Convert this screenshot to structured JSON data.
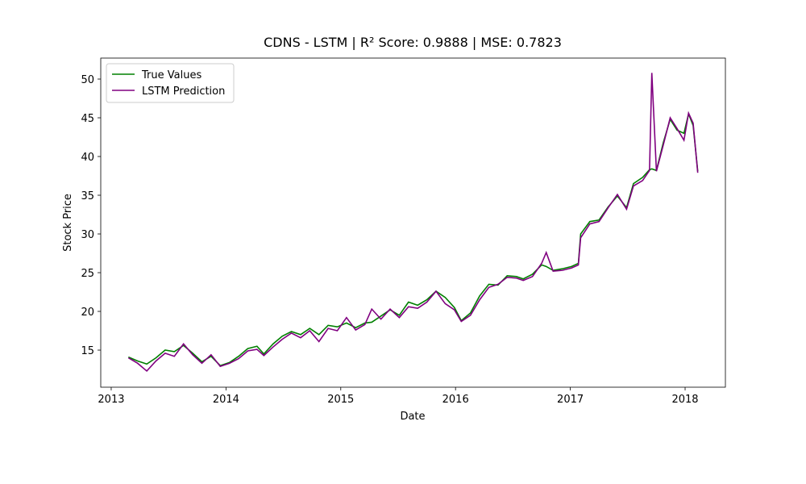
{
  "chart_data": {
    "type": "line",
    "title": "CDNS - LSTM | R² Score: 0.9888 | MSE: 0.7823",
    "x_label": "Date",
    "y_label": "Stock Price",
    "x": [
      2013.15,
      2013.23,
      2013.31,
      2013.39,
      2013.47,
      2013.55,
      2013.63,
      2013.71,
      2013.79,
      2013.87,
      2013.95,
      2014.03,
      2014.11,
      2014.19,
      2014.27,
      2014.33,
      2014.41,
      2014.49,
      2014.57,
      2014.65,
      2014.73,
      2014.81,
      2014.89,
      2014.97,
      2015.05,
      2015.13,
      2015.21,
      2015.27,
      2015.35,
      2015.43,
      2015.51,
      2015.59,
      2015.67,
      2015.75,
      2015.83,
      2015.91,
      2015.99,
      2016.05,
      2016.13,
      2016.21,
      2016.29,
      2016.37,
      2016.45,
      2016.53,
      2016.59,
      2016.67,
      2016.75,
      2016.79,
      2016.85,
      2016.93,
      2017.01,
      2017.07,
      2017.09,
      2017.17,
      2017.25,
      2017.33,
      2017.41,
      2017.49,
      2017.55,
      2017.63,
      2017.69,
      2017.71,
      2017.75,
      2017.81,
      2017.87,
      2017.93,
      2017.99,
      2018.03,
      2018.07,
      2018.11
    ],
    "series": [
      {
        "name": "True Values",
        "color": "#008000",
        "values": [
          14.1,
          13.6,
          13.2,
          14.0,
          15.0,
          14.8,
          15.6,
          14.6,
          13.5,
          14.2,
          13.0,
          13.4,
          14.2,
          15.2,
          15.5,
          14.5,
          15.8,
          16.8,
          17.4,
          17.0,
          17.8,
          17.0,
          18.2,
          18.0,
          18.5,
          17.9,
          18.5,
          18.6,
          19.4,
          20.2,
          19.5,
          21.2,
          20.8,
          21.5,
          22.6,
          21.8,
          20.5,
          18.8,
          19.8,
          22.0,
          23.5,
          23.4,
          24.6,
          24.5,
          24.2,
          24.8,
          26.0,
          25.8,
          25.3,
          25.5,
          25.8,
          26.2,
          30.0,
          31.6,
          31.8,
          33.5,
          34.9,
          33.4,
          36.5,
          37.3,
          38.3,
          38.4,
          38.2,
          41.8,
          44.8,
          43.4,
          43.0,
          45.5,
          44.0,
          38.1
        ]
      },
      {
        "name": "LSTM Prediction",
        "color": "#800080",
        "values": [
          14.0,
          13.3,
          12.3,
          13.6,
          14.6,
          14.2,
          15.8,
          14.4,
          13.3,
          14.4,
          12.9,
          13.3,
          13.9,
          14.9,
          15.1,
          14.3,
          15.4,
          16.4,
          17.2,
          16.6,
          17.5,
          16.1,
          17.8,
          17.5,
          19.2,
          17.6,
          18.3,
          20.3,
          19.0,
          20.3,
          19.2,
          20.6,
          20.4,
          21.2,
          22.6,
          21.0,
          20.2,
          18.7,
          19.5,
          21.5,
          23.1,
          23.5,
          24.4,
          24.3,
          24.0,
          24.5,
          26.2,
          27.6,
          25.2,
          25.3,
          25.6,
          26.0,
          29.5,
          31.3,
          31.6,
          33.4,
          35.1,
          33.2,
          36.2,
          36.9,
          38.2,
          50.8,
          38.1,
          41.5,
          45.0,
          43.6,
          42.1,
          45.6,
          44.3,
          37.9
        ]
      }
    ],
    "xlim": [
      2012.909,
      2018.351
    ],
    "xticks": [
      2013,
      2014,
      2015,
      2016,
      2017,
      2018
    ],
    "ylim": [
      10.21,
      52.71
    ],
    "yticks": [
      15,
      20,
      25,
      30,
      35,
      40,
      45,
      50
    ],
    "legend": "upper left"
  }
}
